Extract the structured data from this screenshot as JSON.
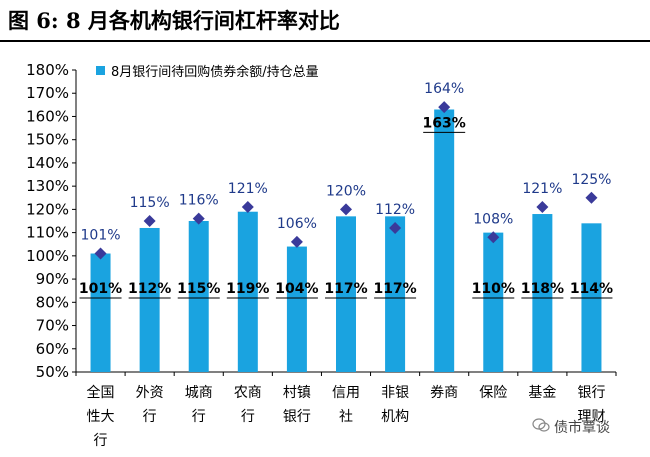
{
  "figure_title": "图 6:  8 月各机构银行间杠杆率对比",
  "watermark": "债市覃谈",
  "colors": {
    "bar": "#1aa3e0",
    "marker": "#3a3a9a",
    "point_label": "#1f3a8a"
  },
  "chart_data": {
    "type": "bar",
    "title": "",
    "xlabel": "",
    "ylabel": "",
    "ylim": [
      50,
      180
    ],
    "ytick_step": 10,
    "yticks": [
      "50%",
      "60%",
      "70%",
      "80%",
      "90%",
      "100%",
      "110%",
      "120%",
      "130%",
      "140%",
      "150%",
      "160%",
      "170%",
      "180%"
    ],
    "grid": false,
    "legend_position": "top",
    "categories": [
      [
        "全国",
        "性大",
        "行"
      ],
      [
        "外资",
        "行"
      ],
      [
        "城商",
        "行"
      ],
      [
        "农商",
        "行"
      ],
      [
        "村镇",
        "银行"
      ],
      [
        "信用",
        "社"
      ],
      [
        "非银",
        "机构"
      ],
      [
        "券商"
      ],
      [
        "保险"
      ],
      [
        "基金"
      ],
      [
        "银行",
        "理财"
      ]
    ],
    "series": [
      {
        "name": "8月银行间待回购债券余额/持仓总量",
        "kind": "bar",
        "values": [
          101,
          112,
          115,
          119,
          104,
          117,
          117,
          163,
          110,
          118,
          114
        ],
        "labels": [
          "101%",
          "112%",
          "115%",
          "119%",
          "104%",
          "117%",
          "117%",
          "163%",
          "110%",
          "118%",
          "114%"
        ]
      },
      {
        "kind": "diamond",
        "values": [
          101,
          115,
          116,
          121,
          106,
          120,
          112,
          164,
          108,
          121,
          125
        ],
        "labels": [
          "101%",
          "115%",
          "116%",
          "121%",
          "106%",
          "120%",
          "112%",
          "164%",
          "108%",
          "121%",
          "125%"
        ]
      }
    ]
  }
}
